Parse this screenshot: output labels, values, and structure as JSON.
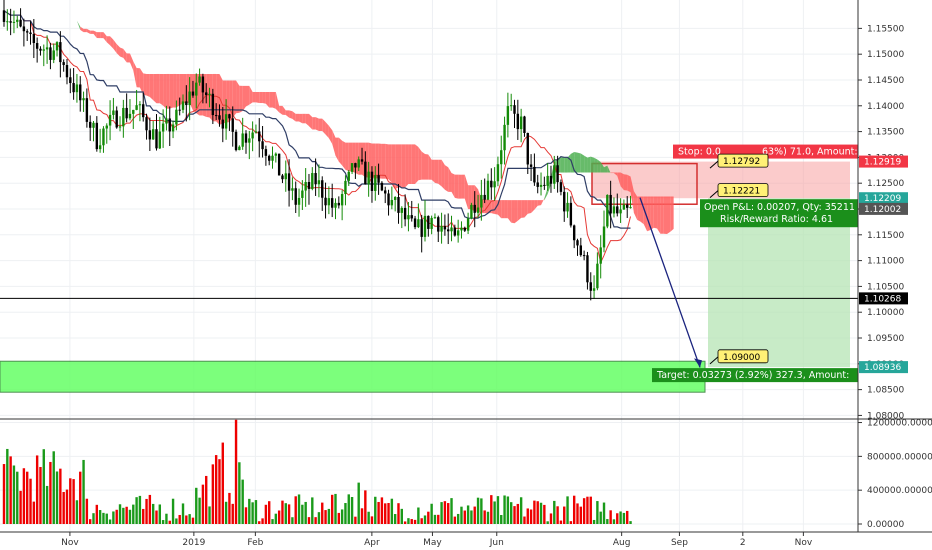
{
  "chart_data": {
    "type": "candlestick",
    "instrument_hint": "",
    "price_axis": {
      "ticks": [
        "1.15500",
        "1.15000",
        "1.14500",
        "1.14000",
        "1.13500",
        "1.13000",
        "1.12500",
        "1.12000",
        "1.11500",
        "1.11000",
        "1.10500",
        "1.10000",
        "1.09500",
        "1.09000",
        "1.08500",
        "1.08000"
      ],
      "range": [
        1.0795,
        1.1605
      ]
    },
    "volume_axis": {
      "ticks": [
        "1200000.00000",
        "800000.00000",
        "400000.00000",
        "0.00000"
      ],
      "range": [
        0,
        1230000
      ]
    },
    "time_axis": {
      "labels": [
        {
          "text": "Nov",
          "t": 0.075
        },
        {
          "text": "2019",
          "t": 0.208
        },
        {
          "text": "Feb",
          "t": 0.274
        },
        {
          "text": "Apr",
          "t": 0.399
        },
        {
          "text": "May",
          "t": 0.464
        },
        {
          "text": "Jun",
          "t": 0.533
        },
        {
          "text": "Aug",
          "t": 0.667
        },
        {
          "text": "Sep",
          "t": 0.729
        },
        {
          "text": "2",
          "t": 0.797
        },
        {
          "text": "Nov",
          "t": 0.862
        }
      ]
    },
    "price_tags": [
      {
        "value": "1.12919",
        "price": 1.12919,
        "color": "#f23645"
      },
      {
        "value": "1.12209",
        "price": 1.12209,
        "color": "#26a69a"
      },
      {
        "value": "1.12002",
        "price": 1.12002,
        "color": "#555555"
      },
      {
        "value": "1.10268",
        "price": 1.10268,
        "color": "#000000"
      },
      {
        "value": "1.08936",
        "price": 1.08936,
        "color": "#26a69a"
      }
    ],
    "horizontal_line": {
      "price": 1.10268,
      "color": "#000000"
    },
    "support_zone": {
      "top": 1.0905,
      "bottom": 1.0845,
      "color": "#66ff66"
    },
    "position": {
      "entry": 1.12209,
      "stop": 1.12919,
      "target": 1.08936,
      "stop_label": "Stop: 0.0",
      "stop_label_tail": "63%) 71.0, Amount:",
      "pnl_label": "Open P&L: 0.00207, Qty: 35211",
      "rr_label": "Risk/Reward Ratio: 4.61",
      "target_label": "Target: 0.03273 (2.92%) 327.3, Amount:"
    },
    "callouts": [
      {
        "text": "1.12792",
        "price": 1.12792
      },
      {
        "text": "1.12221",
        "price": 1.12221
      },
      {
        "text": "1.09000",
        "price": 1.09
      }
    ],
    "projection": {
      "from_price": 1.1222,
      "to_price": 1.0893
    },
    "colors": {
      "up": "#138a07",
      "down": "#000000",
      "vol_up": "#1a9a1a",
      "vol_down": "#ee0000",
      "cloud_bear": "#ff5e5e",
      "cloud_bull": "#4caf50",
      "tenkan": "#e53935",
      "kijun": "#2f3e66",
      "stop_zone": "#f7a1a1",
      "target_zone": "#b6e4b4"
    },
    "series_seed": {
      "start_price": 1.1585,
      "n_candles": 190,
      "path": [
        [
          0,
          1.1585
        ],
        [
          8,
          1.152
        ],
        [
          16,
          1.1505
        ],
        [
          22,
          1.1425
        ],
        [
          28,
          1.1335
        ],
        [
          34,
          1.138
        ],
        [
          40,
          1.1395
        ],
        [
          46,
          1.1335
        ],
        [
          52,
          1.1375
        ],
        [
          58,
          1.1445
        ],
        [
          64,
          1.1395
        ],
        [
          70,
          1.1335
        ],
        [
          76,
          1.1355
        ],
        [
          82,
          1.1285
        ],
        [
          88,
          1.1215
        ],
        [
          94,
          1.1255
        ],
        [
          100,
          1.1195
        ],
        [
          106,
          1.1285
        ],
        [
          112,
          1.1245
        ],
        [
          118,
          1.1205
        ],
        [
          124,
          1.1155
        ],
        [
          130,
          1.1185
        ],
        [
          136,
          1.1135
        ],
        [
          142,
          1.1215
        ],
        [
          148,
          1.1265
        ],
        [
          152,
          1.1385
        ],
        [
          156,
          1.1365
        ],
        [
          160,
          1.1235
        ],
        [
          166,
          1.1265
        ],
        [
          170,
          1.1195
        ],
        [
          174,
          1.1115
        ],
        [
          178,
          1.1035
        ],
        [
          182,
          1.1205
        ],
        [
          186,
          1.1185
        ],
        [
          189,
          1.1195
        ]
      ]
    }
  }
}
